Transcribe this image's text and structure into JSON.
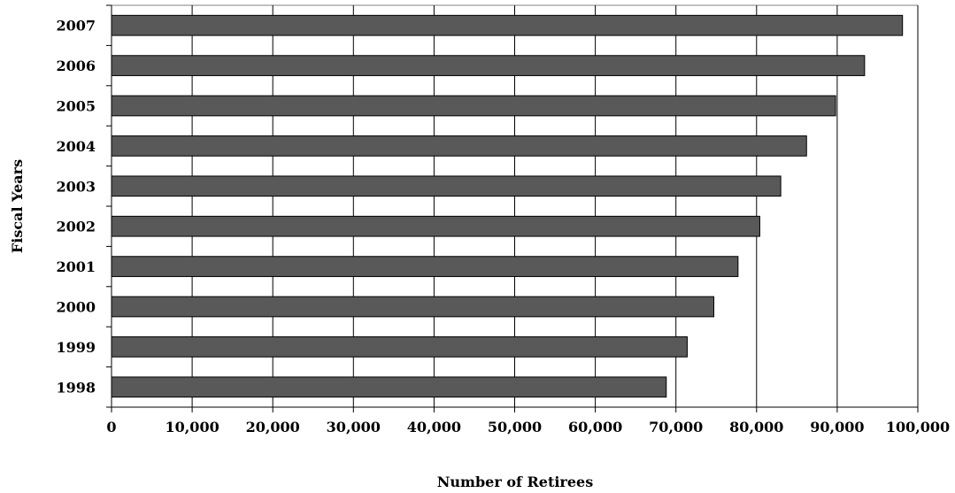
{
  "chart_data": {
    "type": "bar",
    "orientation": "horizontal",
    "categories": [
      "1998",
      "1999",
      "2000",
      "2001",
      "2002",
      "2003",
      "2004",
      "2005",
      "2006",
      "2007"
    ],
    "values": [
      68800,
      71400,
      74700,
      77700,
      80400,
      83000,
      86200,
      89800,
      93400,
      98100
    ],
    "xlabel": "Number of Retirees",
    "ylabel": "Fiscal Years",
    "xlim": [
      0,
      100000
    ],
    "x_ticks": [
      0,
      10000,
      20000,
      30000,
      40000,
      50000,
      60000,
      70000,
      80000,
      90000,
      100000
    ],
    "x_tick_labels": [
      "0",
      "10,000",
      "20,000",
      "30,000",
      "40,000",
      "50,000",
      "60,000",
      "70,000",
      "80,000",
      "90,000",
      "100,000"
    ],
    "grid": "vertical",
    "bar_color": "#595959",
    "legend": "none"
  }
}
